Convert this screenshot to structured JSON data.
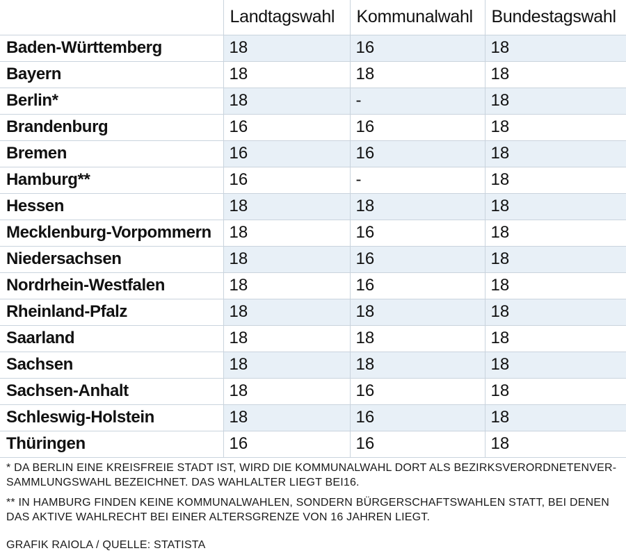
{
  "table": {
    "columns": [
      "",
      "Landtagswahl",
      "Kommunalwahl",
      "Bundestagswahl"
    ],
    "rows": [
      {
        "land": "Baden-Württemberg",
        "landtag": "18",
        "kommunal": "16",
        "bundestag": "18"
      },
      {
        "land": "Bayern",
        "landtag": "18",
        "kommunal": "18",
        "bundestag": "18"
      },
      {
        "land": "Berlin*",
        "landtag": "18",
        "kommunal": "-",
        "bundestag": "18"
      },
      {
        "land": "Brandenburg",
        "landtag": "16",
        "kommunal": "16",
        "bundestag": "18"
      },
      {
        "land": "Bremen",
        "landtag": "16",
        "kommunal": "16",
        "bundestag": "18"
      },
      {
        "land": "Hamburg**",
        "landtag": "16",
        "kommunal": "-",
        "bundestag": "18"
      },
      {
        "land": "Hessen",
        "landtag": "18",
        "kommunal": "18",
        "bundestag": "18"
      },
      {
        "land": "Mecklenburg-Vorpommern",
        "landtag": "18",
        "kommunal": "16",
        "bundestag": "18"
      },
      {
        "land": "Niedersachsen",
        "landtag": "18",
        "kommunal": "16",
        "bundestag": "18"
      },
      {
        "land": "Nordrhein-Westfalen",
        "landtag": "18",
        "kommunal": "16",
        "bundestag": "18"
      },
      {
        "land": "Rheinland-Pfalz",
        "landtag": "18",
        "kommunal": "18",
        "bundestag": "18"
      },
      {
        "land": "Saarland",
        "landtag": "18",
        "kommunal": "18",
        "bundestag": "18"
      },
      {
        "land": "Sachsen",
        "landtag": "18",
        "kommunal": "18",
        "bundestag": "18"
      },
      {
        "land": "Sachsen-Anhalt",
        "landtag": "18",
        "kommunal": "16",
        "bundestag": "18"
      },
      {
        "land": "Schleswig-Holstein",
        "landtag": "18",
        "kommunal": "16",
        "bundestag": "18"
      },
      {
        "land": "Thüringen",
        "landtag": "16",
        "kommunal": "16",
        "bundestag": "18"
      }
    ]
  },
  "footnotes": [
    "* DA BERLIN EINE KREISFREIE STADT IST, WIRD DIE KOMMUNALWAHL DORT ALS BEZIRKSVERORDNETENVER-SAMMLUNGSWAHL BEZEICHNET. DAS WAHLALTER LIEGT BEI16.",
    "** IN HAMBURG FINDEN KEINE KOMMUNALWAHLEN, SONDERN BÜRGERSCHAFTSWAHLEN STATT, BEI DENEN DAS AKTIVE WAHLRECHT BEI EINER ALTERSGRENZE VON 16 JAHREN LIEGT."
  ],
  "credit": "GRAFIK RAIOLA  / QUELLE: STATISTA",
  "colors": {
    "stripe": "#e8f0f7",
    "grid": "#c9d3dd",
    "text": "#111111"
  }
}
